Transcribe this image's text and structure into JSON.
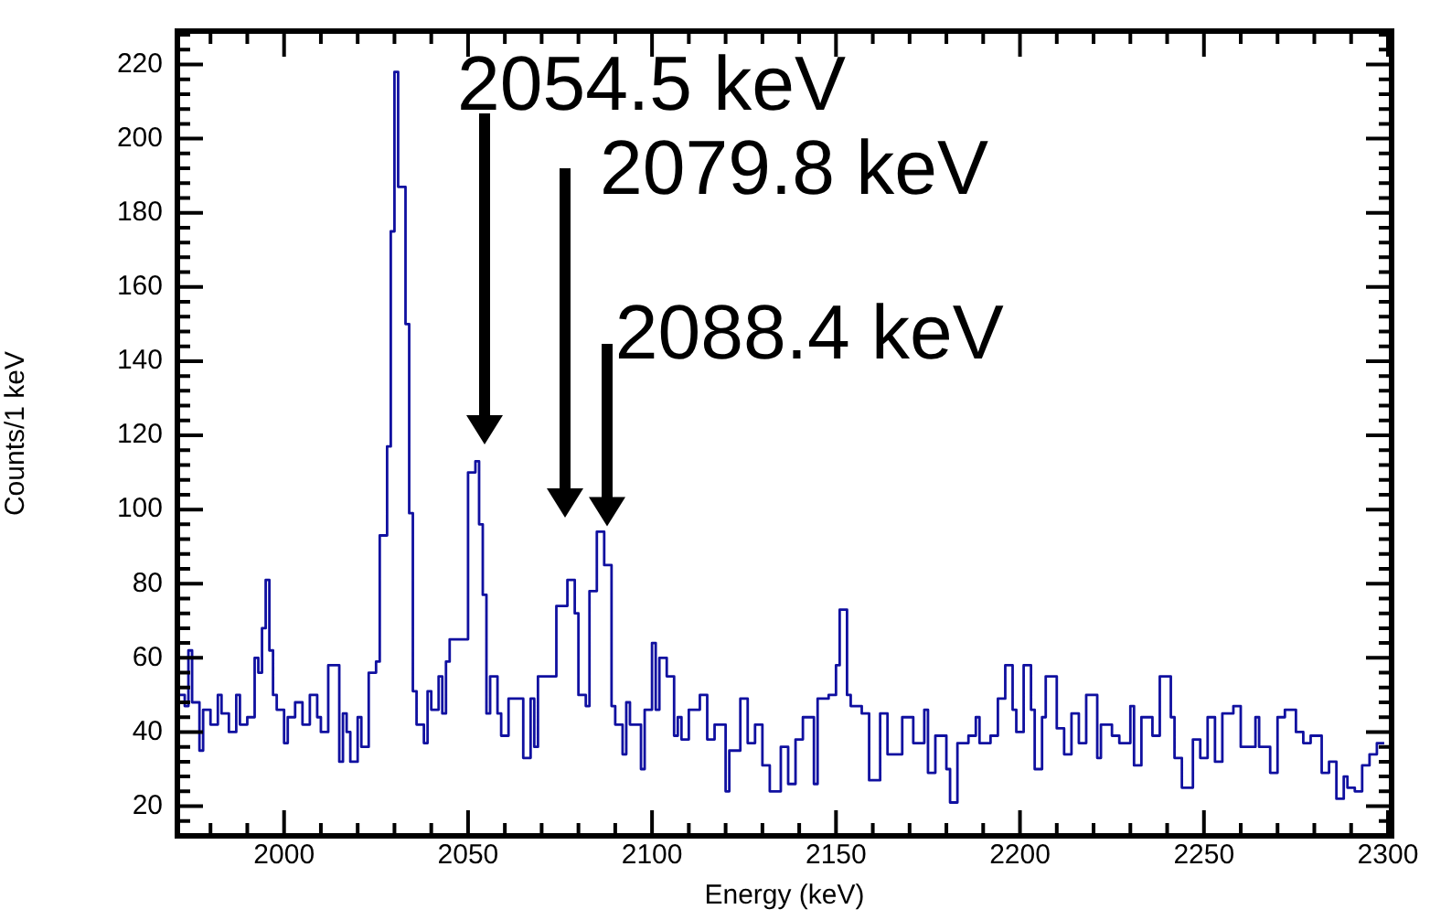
{
  "chart_data": {
    "type": "step",
    "xlabel": "Energy (keV)",
    "ylabel": "Counts/1 keV",
    "x": [
      1971,
      1973,
      1974,
      1975,
      1977,
      1978,
      1980,
      1982,
      1983,
      1985,
      1987,
      1988,
      1990,
      1992,
      1993,
      1994,
      1995,
      1996,
      1997,
      1998,
      2000,
      2001,
      2003,
      2005,
      2007,
      2009,
      2010,
      2012,
      2015,
      2016,
      2017,
      2018,
      2020,
      2021,
      2023,
      2025,
      2026,
      2028,
      2029,
      2030,
      2031,
      2033,
      2034,
      2035,
      2036,
      2038,
      2039,
      2040,
      2042,
      2043,
      2044,
      2045,
      2050,
      2052,
      2053,
      2054,
      2055,
      2056,
      2058,
      2059,
      2061,
      2065,
      2067,
      2068,
      2069,
      2074,
      2077,
      2079,
      2080,
      2082,
      2083,
      2085,
      2087,
      2089,
      2090,
      2092,
      2093,
      2094,
      2097,
      2098,
      2100,
      2101,
      2102,
      2104,
      2106,
      2107,
      2108,
      2110,
      2113,
      2115,
      2117,
      2120,
      2121,
      2124,
      2126,
      2128,
      2130,
      2132,
      2135,
      2137,
      2139,
      2141,
      2144,
      2145,
      2148,
      2150,
      2151,
      2153,
      2154,
      2157,
      2159,
      2162,
      2164,
      2168,
      2171,
      2174,
      2175,
      2177,
      2180,
      2181,
      2183,
      2186,
      2188,
      2189,
      2192,
      2194,
      2196,
      2198,
      2199,
      2201,
      2203,
      2204,
      2206,
      2207,
      2210,
      2212,
      2214,
      2216,
      2218,
      2221,
      2222,
      2225,
      2227,
      2230,
      2231,
      2233,
      2236,
      2238,
      2241,
      2242,
      2244,
      2247,
      2249,
      2251,
      2253,
      2255,
      2258,
      2260,
      2264,
      2265,
      2268,
      2270,
      2272,
      2275,
      2277,
      2279,
      2282,
      2284,
      2286,
      2288,
      2289,
      2291,
      2293,
      2295,
      2297,
      2299
    ],
    "series": [
      {
        "color": "#1010a0",
        "values": [
          45,
          50,
          47,
          62,
          48,
          35,
          46,
          42,
          50,
          45,
          40,
          50,
          42,
          44,
          60,
          56,
          68,
          81,
          62,
          50,
          46,
          37,
          44,
          48,
          42,
          50,
          44,
          40,
          58,
          32,
          45,
          40,
          32,
          44,
          36,
          56,
          59,
          93,
          117,
          175,
          218,
          187,
          150,
          99,
          51,
          42,
          37,
          51,
          46,
          55,
          45,
          59,
          65,
          110,
          113,
          96,
          77,
          45,
          55,
          45,
          39,
          49,
          33,
          49,
          36,
          55,
          74,
          81,
          72,
          50,
          47,
          78,
          94,
          85,
          47,
          42,
          34,
          48,
          42,
          30,
          46,
          64,
          46,
          60,
          55,
          39,
          44,
          38,
          46,
          50,
          38,
          42,
          24,
          35,
          49,
          37,
          42,
          31,
          24,
          36,
          26,
          38,
          44,
          26,
          49,
          50,
          58,
          73,
          50,
          47,
          45,
          27,
          45,
          34,
          44,
          37,
          46,
          29,
          39,
          30,
          21,
          37,
          39,
          44,
          37,
          39,
          49,
          58,
          46,
          40,
          58,
          46,
          30,
          44,
          55,
          41,
          34,
          45,
          37,
          50,
          33,
          42,
          39,
          37,
          47,
          31,
          44,
          39,
          55,
          44,
          33,
          25,
          38,
          33,
          44,
          32,
          45,
          47,
          36,
          44,
          36,
          29,
          44,
          46,
          40,
          37,
          39,
          29,
          32,
          22,
          28,
          25,
          24,
          31,
          34,
          37
        ]
      }
    ],
    "xlim": [
      1971,
      2301
    ],
    "xticks": [
      {
        "value": 1980,
        "label": null
      },
      {
        "value": 1990,
        "label": null
      },
      2000,
      {
        "value": 2010,
        "label": null
      },
      {
        "value": 2020,
        "label": null
      },
      {
        "value": 2030,
        "label": null
      },
      {
        "value": 2040,
        "label": null
      },
      2050,
      {
        "value": 2060,
        "label": null
      },
      {
        "value": 2070,
        "label": null
      },
      {
        "value": 2080,
        "label": null
      },
      {
        "value": 2090,
        "label": null
      },
      2100,
      {
        "value": 2110,
        "label": null
      },
      {
        "value": 2120,
        "label": null
      },
      {
        "value": 2130,
        "label": null
      },
      {
        "value": 2140,
        "label": null
      },
      2150,
      {
        "value": 2160,
        "label": null
      },
      {
        "value": 2170,
        "label": null
      },
      {
        "value": 2180,
        "label": null
      },
      {
        "value": 2190,
        "label": null
      },
      2200,
      {
        "value": 2210,
        "label": null
      },
      {
        "value": 2220,
        "label": null
      },
      {
        "value": 2230,
        "label": null
      },
      {
        "value": 2240,
        "label": null
      },
      2250,
      {
        "value": 2260,
        "label": null
      },
      {
        "value": 2270,
        "label": null
      },
      {
        "value": 2280,
        "label": null
      },
      {
        "value": 2290,
        "label": null
      },
      2300
    ],
    "ylim": [
      12,
      229
    ],
    "yticks": [
      {
        "value": 16,
        "label": null
      },
      20,
      {
        "value": 24,
        "label": null
      },
      {
        "value": 28,
        "label": null
      },
      {
        "value": 32,
        "label": null
      },
      {
        "value": 36,
        "label": null
      },
      40,
      {
        "value": 44,
        "label": null
      },
      {
        "value": 48,
        "label": null
      },
      {
        "value": 52,
        "label": null
      },
      {
        "value": 56,
        "label": null
      },
      60,
      {
        "value": 64,
        "label": null
      },
      {
        "value": 68,
        "label": null
      },
      {
        "value": 72,
        "label": null
      },
      {
        "value": 76,
        "label": null
      },
      80,
      {
        "value": 84,
        "label": null
      },
      {
        "value": 88,
        "label": null
      },
      {
        "value": 92,
        "label": null
      },
      {
        "value": 96,
        "label": null
      },
      100,
      {
        "value": 104,
        "label": null
      },
      {
        "value": 108,
        "label": null
      },
      {
        "value": 112,
        "label": null
      },
      {
        "value": 116,
        "label": null
      },
      120,
      {
        "value": 124,
        "label": null
      },
      {
        "value": 128,
        "label": null
      },
      {
        "value": 132,
        "label": null
      },
      {
        "value": 136,
        "label": null
      },
      140,
      {
        "value": 144,
        "label": null
      },
      {
        "value": 148,
        "label": null
      },
      {
        "value": 152,
        "label": null
      },
      {
        "value": 156,
        "label": null
      },
      160,
      {
        "value": 164,
        "label": null
      },
      {
        "value": 168,
        "label": null
      },
      {
        "value": 172,
        "label": null
      },
      {
        "value": 176,
        "label": null
      },
      180,
      {
        "value": 184,
        "label": null
      },
      {
        "value": 188,
        "label": null
      },
      {
        "value": 192,
        "label": null
      },
      {
        "value": 196,
        "label": null
      },
      200,
      {
        "value": 204,
        "label": null
      },
      {
        "value": 208,
        "label": null
      },
      {
        "value": 212,
        "label": null
      },
      {
        "value": 216,
        "label": null
      },
      220,
      {
        "value": 224,
        "label": null
      },
      {
        "value": 228,
        "label": null
      }
    ],
    "annotations": [
      "2054.5 keV",
      "2079.8 keV",
      {
        "text": "2088.4 keV",
        "x": 2088,
        "y": 94
      }
    ],
    "grid": false,
    "legend": false,
    "marker": "none",
    "line_style": "solid"
  }
}
